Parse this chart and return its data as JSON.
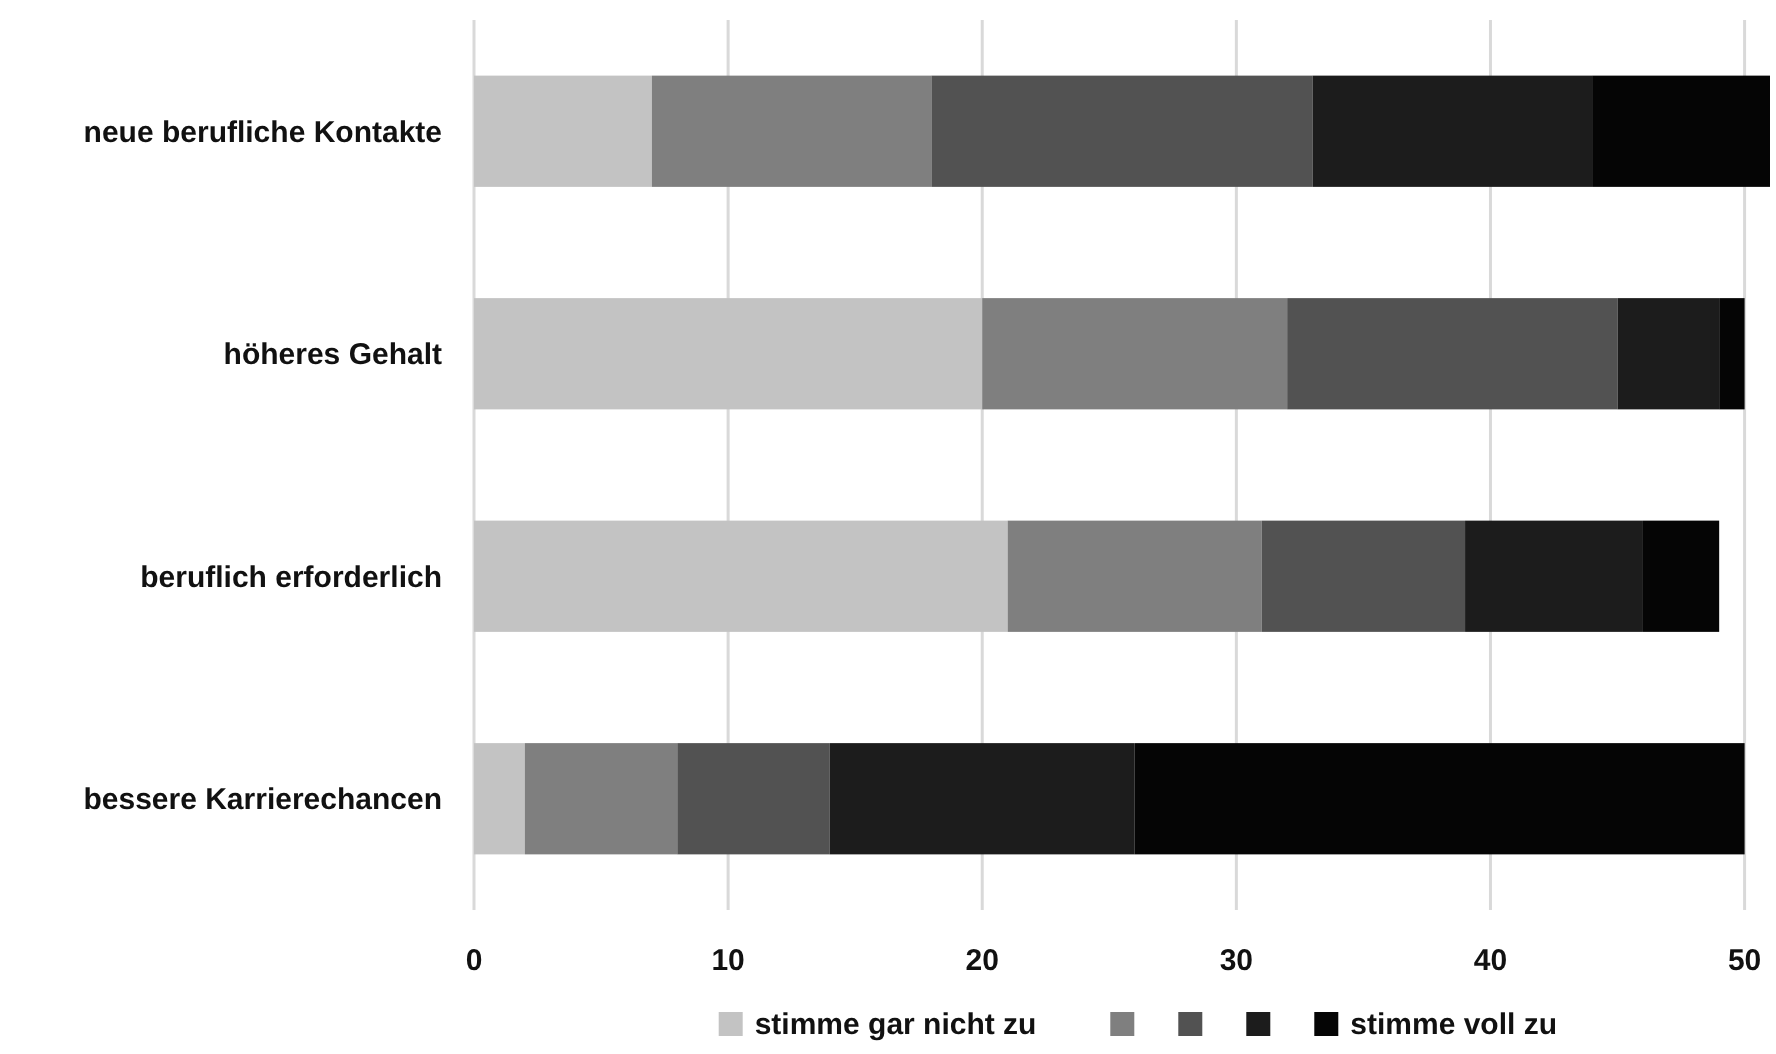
{
  "chart_data": {
    "type": "bar",
    "orientation": "horizontal",
    "stacked": true,
    "categories": [
      "neue berufliche Kontakte",
      "höheres Gehalt",
      "beruflich erforderlich",
      "bessere Karrierechancen"
    ],
    "series": [
      {
        "name": "stimme gar nicht zu",
        "color": "#c3c3c3",
        "values": [
          7,
          20,
          21,
          2
        ]
      },
      {
        "color": "#7f7f7f",
        "values": [
          11,
          12,
          10,
          6
        ]
      },
      {
        "color": "#525252",
        "values": [
          15,
          13,
          8,
          6
        ]
      },
      {
        "color": "#1c1c1c",
        "values": [
          11,
          4,
          7,
          12
        ]
      },
      {
        "name": "stimme voll zu",
        "color": "#050505",
        "values": [
          7,
          1,
          3,
          24
        ]
      }
    ],
    "xlim": [
      0,
      51
    ],
    "xticks": [
      0,
      10,
      20,
      30,
      40,
      50
    ],
    "grid": "x",
    "legend": "bottom"
  }
}
